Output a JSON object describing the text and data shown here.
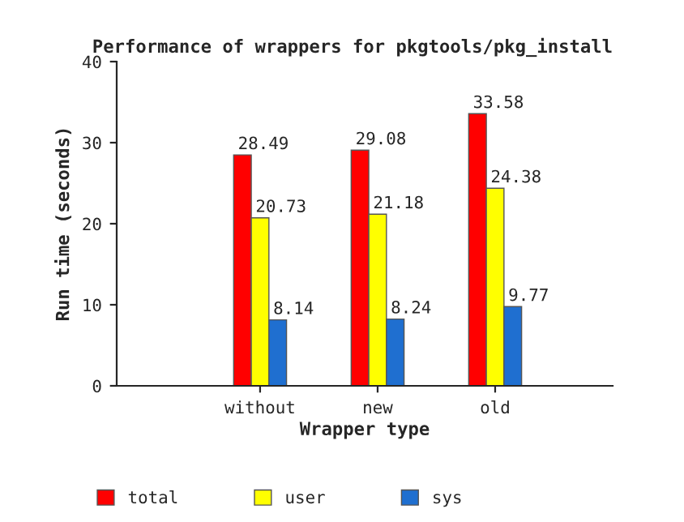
{
  "chart_data": {
    "type": "bar",
    "title": "Performance of wrappers for pkgtools/pkg_install",
    "xlabel": "Wrapper type",
    "ylabel": "Run time (seconds)",
    "categories": [
      "without",
      "new",
      "old"
    ],
    "series": [
      {
        "name": "total",
        "color": "#ff0000",
        "values": [
          28.49,
          29.08,
          33.58
        ]
      },
      {
        "name": "user",
        "color": "#ffff00",
        "values": [
          20.73,
          21.18,
          24.38
        ]
      },
      {
        "name": "sys",
        "color": "#1f6fd0",
        "values": [
          8.14,
          8.24,
          9.77
        ]
      }
    ],
    "ylim": [
      0,
      40
    ],
    "yticks": [
      0,
      10,
      20,
      30,
      40
    ],
    "data_labels": true,
    "grid": false,
    "legend": "bottom"
  }
}
